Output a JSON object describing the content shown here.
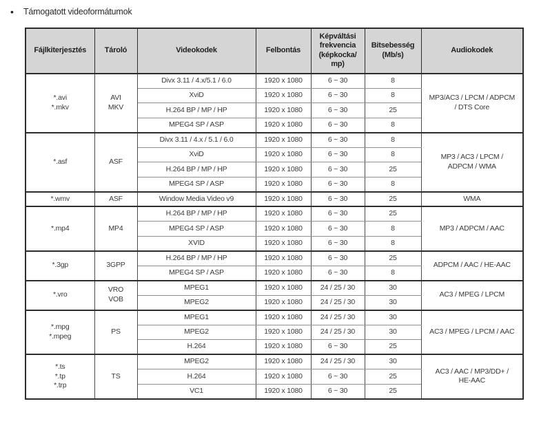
{
  "title": "Támogatott videoformátumok",
  "bullet": "•",
  "colors": {
    "header_bg": "#d5d5d5",
    "border_dark": "#2c2c2c",
    "border_light": "#909090",
    "text": "#3a3a3a"
  },
  "table": {
    "headers": [
      "Fájlkiterjesztés",
      "Tároló",
      "Videokodek",
      "Felbontás",
      "Képváltási\nfrekvencia\n(képkocka/\nmp)",
      "Bitsebesség\n(Mb/s)",
      "Audiokodek"
    ],
    "groups": [
      {
        "extension": "*.avi\n*.mkv",
        "container": "AVI\nMKV",
        "audio_codec": "MP3/AC3 / LPCM / ADPCM\n/ DTS Core",
        "rows": [
          {
            "video_codec": "Divx 3.11 / 4.x/5.1 / 6.0",
            "resolution": "1920 x 1080",
            "frame_rate": "6 ~ 30",
            "bit_rate": "8"
          },
          {
            "video_codec": "XviD",
            "resolution": "1920 x 1080",
            "frame_rate": "6 ~ 30",
            "bit_rate": "8"
          },
          {
            "video_codec": "H.264 BP / MP / HP",
            "resolution": "1920 x 1080",
            "frame_rate": "6 ~ 30",
            "bit_rate": "25"
          },
          {
            "video_codec": "MPEG4 SP / ASP",
            "resolution": "1920 x 1080",
            "frame_rate": "6 ~ 30",
            "bit_rate": "8"
          }
        ]
      },
      {
        "extension": "*.asf",
        "container": "ASF",
        "audio_codec": "MP3 / AC3 / LPCM /\nADPCM / WMA",
        "rows": [
          {
            "video_codec": "Divx 3.11 / 4.x / 5.1 / 6.0",
            "resolution": "1920 x 1080",
            "frame_rate": "6 ~ 30",
            "bit_rate": "8"
          },
          {
            "video_codec": "XviD",
            "resolution": "1920 x 1080",
            "frame_rate": "6 ~ 30",
            "bit_rate": "8"
          },
          {
            "video_codec": "H.264 BP / MP / HP",
            "resolution": "1920 x 1080",
            "frame_rate": "6 ~ 30",
            "bit_rate": "25"
          },
          {
            "video_codec": "MPEG4 SP / ASP",
            "resolution": "1920 x 1080",
            "frame_rate": "6 ~ 30",
            "bit_rate": "8"
          }
        ]
      },
      {
        "extension": "*.wmv",
        "container": "ASF",
        "audio_codec": "WMA",
        "rows": [
          {
            "video_codec": "Window Media Video v9",
            "resolution": "1920 x 1080",
            "frame_rate": "6 ~ 30",
            "bit_rate": "25"
          }
        ]
      },
      {
        "extension": "*.mp4",
        "container": "MP4",
        "audio_codec": "MP3 / ADPCM / AAC",
        "rows": [
          {
            "video_codec": "H.264 BP / MP / HP",
            "resolution": "1920 x 1080",
            "frame_rate": "6 ~ 30",
            "bit_rate": "25"
          },
          {
            "video_codec": "MPEG4 SP / ASP",
            "resolution": "1920 x 1080",
            "frame_rate": "6 ~ 30",
            "bit_rate": "8"
          },
          {
            "video_codec": "XVID",
            "resolution": "1920 x 1080",
            "frame_rate": "6 ~ 30",
            "bit_rate": "8"
          }
        ]
      },
      {
        "extension": "*.3gp",
        "container": "3GPP",
        "audio_codec": "ADPCM / AAC / HE-AAC",
        "rows": [
          {
            "video_codec": "H.264 BP / MP / HP",
            "resolution": "1920 x 1080",
            "frame_rate": "6 ~ 30",
            "bit_rate": "25"
          },
          {
            "video_codec": "MPEG4 SP / ASP",
            "resolution": "1920 x 1080",
            "frame_rate": "6 ~ 30",
            "bit_rate": "8"
          }
        ]
      },
      {
        "extension": "*.vro",
        "container": "VRO\nVOB",
        "audio_codec": "AC3 / MPEG / LPCM",
        "rows": [
          {
            "video_codec": "MPEG1",
            "resolution": "1920 x 1080",
            "frame_rate": "24 / 25 / 30",
            "bit_rate": "30"
          },
          {
            "video_codec": "MPEG2",
            "resolution": "1920 x 1080",
            "frame_rate": "24 / 25 / 30",
            "bit_rate": "30"
          }
        ]
      },
      {
        "extension": "*.mpg\n*.mpeg",
        "container": "PS",
        "audio_codec": "AC3 / MPEG / LPCM / AAC",
        "rows": [
          {
            "video_codec": "MPEG1",
            "resolution": "1920 x 1080",
            "frame_rate": "24 / 25 / 30",
            "bit_rate": "30"
          },
          {
            "video_codec": "MPEG2",
            "resolution": "1920 x 1080",
            "frame_rate": "24 / 25 / 30",
            "bit_rate": "30"
          },
          {
            "video_codec": "H.264",
            "resolution": "1920 x 1080",
            "frame_rate": "6 ~ 30",
            "bit_rate": "25"
          }
        ]
      },
      {
        "extension": "*.ts\n*.tp\n*.trp",
        "container": "TS",
        "audio_codec": "AC3 / AAC / MP3/DD+ /\nHE-AAC",
        "rows": [
          {
            "video_codec": "MPEG2",
            "resolution": "1920 x 1080",
            "frame_rate": "24 / 25 / 30",
            "bit_rate": "30"
          },
          {
            "video_codec": "H.264",
            "resolution": "1920 x 1080",
            "frame_rate": "6 ~ 30",
            "bit_rate": "25"
          },
          {
            "video_codec": "VC1",
            "resolution": "1920 x 1080",
            "frame_rate": "6 ~ 30",
            "bit_rate": "25"
          }
        ]
      }
    ]
  }
}
